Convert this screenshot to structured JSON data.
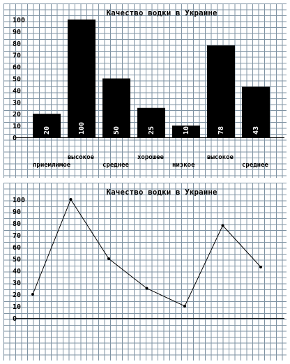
{
  "chart_data": [
    {
      "type": "bar",
      "title": "Качество водки в Украине",
      "categories": [
        "приемлимое",
        "высокое",
        "среднее",
        "хорошее",
        "низкое",
        "высокое",
        "среднее"
      ],
      "values": [
        20,
        100,
        50,
        25,
        10,
        78,
        43
      ],
      "data_labels": [
        "20",
        "100",
        "50",
        "25",
        "10",
        "78",
        "43"
      ],
      "yticks": [
        "0",
        "10",
        "20",
        "30",
        "40",
        "50",
        "60",
        "70",
        "80",
        "90",
        "100"
      ],
      "ylim": [
        0,
        100
      ],
      "grid": true,
      "bar_color": "#000000"
    },
    {
      "type": "line",
      "title": "Качество водки в Украине",
      "values": [
        20,
        100,
        50,
        25,
        10,
        78,
        43
      ],
      "yticks": [
        "0",
        "10",
        "20",
        "30",
        "40",
        "50",
        "60",
        "70",
        "80",
        "90",
        "100"
      ],
      "ylim": [
        0,
        100
      ],
      "grid": true,
      "line_color": "#000000"
    }
  ]
}
